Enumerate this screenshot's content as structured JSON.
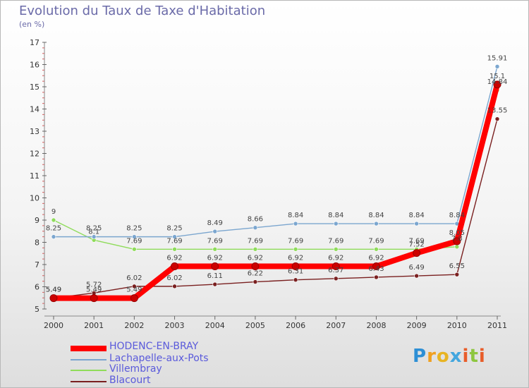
{
  "title": "Evolution du Taux de Taxe d'Habitation",
  "subtitle": "(en %)",
  "chart_data": {
    "type": "line",
    "title": "Evolution du Taux de Taxe d'Habitation",
    "ylabel": "(en %)",
    "x": [
      "2000",
      "2001",
      "2002",
      "2003",
      "2004",
      "2005",
      "2006",
      "2007",
      "2008",
      "2009",
      "2010",
      "2011"
    ],
    "ylim": [
      5,
      17
    ],
    "yticks": [
      5,
      6,
      7,
      8,
      9,
      10,
      11,
      12,
      13,
      14,
      15,
      16,
      17
    ],
    "grid": false,
    "legend_position": "bottom-left",
    "series": [
      {
        "name": "HODENC-EN-BRAY",
        "color": "#ff0000",
        "values": [
          5.49,
          5.49,
          5.49,
          6.92,
          6.92,
          6.92,
          6.92,
          6.92,
          6.92,
          7.52,
          8.05,
          15.1
        ],
        "labels": [
          "5.49",
          "5.49",
          "5.49",
          "6.92",
          "6.92",
          "6.92",
          "6.92",
          "6.92",
          "6.92",
          "7.52",
          "8.05",
          "15.1"
        ]
      },
      {
        "name": "Lachapelle-aux-Pots",
        "color": "#7ba6cf",
        "values": [
          8.25,
          8.25,
          8.25,
          8.25,
          8.49,
          8.66,
          8.84,
          8.84,
          8.84,
          8.84,
          8.84,
          15.91
        ],
        "labels": [
          "8.25",
          "8.25",
          "8.25",
          "8.25",
          "8.49",
          "8.66",
          "8.84",
          "8.84",
          "8.84",
          "8.84",
          "8.84",
          "15.91"
        ]
      },
      {
        "name": "Villembray",
        "color": "#8fdc5a",
        "values": [
          9,
          8.1,
          7.69,
          7.69,
          7.69,
          7.69,
          7.69,
          7.69,
          7.69,
          7.69,
          7.8,
          14.84
        ],
        "labels": [
          "9",
          "8.1",
          "7.69",
          "7.69",
          "7.69",
          "7.69",
          "7.69",
          "7.69",
          "7.69",
          "7.69",
          "7.8",
          "14.84"
        ]
      },
      {
        "name": "Blacourt",
        "color": "#7a2020",
        "values": [
          5.49,
          5.72,
          6.02,
          6.02,
          6.11,
          6.22,
          6.31,
          6.37,
          6.43,
          6.49,
          6.55,
          13.55
        ],
        "labels": [
          "5.49",
          "5.72",
          "6.02",
          "6.02",
          "6.11",
          "6.22",
          "6.31",
          "6.37",
          "6.43",
          "6.49",
          "6.55",
          "13.55"
        ]
      }
    ]
  },
  "legend": {
    "items": [
      {
        "label": "HODENC-EN-BRAY"
      },
      {
        "label": "Lachapelle-aux-Pots"
      },
      {
        "label": "Villembray"
      },
      {
        "label": "Blacourt"
      }
    ]
  },
  "logo": {
    "text": "Proxiti"
  }
}
